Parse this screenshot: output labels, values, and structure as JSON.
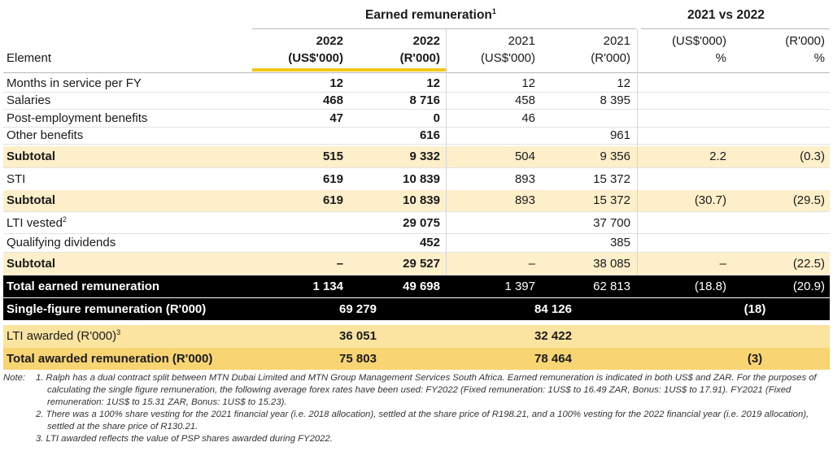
{
  "header": {
    "group_earned": {
      "text": "Earned remuneration",
      "sup": "1"
    },
    "group_compare": "2021 vs 2022",
    "columns": [
      [
        "Element"
      ],
      [
        "2022",
        "(US$'000)"
      ],
      [
        "2022",
        "(R'000)"
      ],
      [
        "2021",
        "(US$'000)"
      ],
      [
        "2021",
        "(R'000)"
      ],
      [
        "(US$'000)",
        "%"
      ],
      [
        "(R'000)",
        "%"
      ]
    ]
  },
  "table": {
    "rows": [
      {
        "style": "plain",
        "cells": [
          "Months in service per FY",
          "12",
          "12",
          "12",
          "12",
          null,
          null
        ]
      },
      {
        "style": "plain",
        "cells": [
          "Salaries",
          "468",
          "8 716",
          "458",
          "8 395",
          null,
          null
        ]
      },
      {
        "style": "plain",
        "cells": [
          "Post-employment benefits",
          "47",
          "0",
          "46",
          null,
          null,
          null
        ]
      },
      {
        "style": "plain",
        "cells": [
          "Other benefits",
          null,
          "616",
          null,
          "961",
          null,
          null
        ]
      },
      {
        "style": "subtotal",
        "cells": [
          "Subtotal",
          "515",
          "9 332",
          "504",
          "9 356",
          "2.2",
          "(0.3)"
        ]
      },
      {
        "style": "plain",
        "cells": [
          "STI",
          "619",
          "10 839",
          "893",
          "15 372",
          null,
          null
        ]
      },
      {
        "style": "subtotal",
        "cells": [
          "Subtotal",
          "619",
          "10 839",
          "893",
          "15 372",
          "(30.7)",
          "(29.5)"
        ]
      },
      {
        "style": "plain",
        "cells": [
          {
            "text": "LTI vested",
            "sup": "2"
          },
          null,
          "29 075",
          null,
          "37 700",
          null,
          null
        ]
      },
      {
        "style": "plain",
        "cells": [
          "Qualifying dividends",
          null,
          "452",
          null,
          "385",
          null,
          null
        ]
      },
      {
        "style": "subtotal",
        "cells": [
          "Subtotal",
          "–",
          "29 527",
          "–",
          "38 085",
          "–",
          "(22.5)"
        ]
      },
      {
        "style": "total",
        "cells": [
          "Total earned  remuneration",
          "1 134",
          "49 698",
          "1 397",
          "62 813",
          "(18.8)",
          "(20.9)"
        ]
      },
      {
        "style": "single",
        "merged": true,
        "cells": [
          "Single-figure remuneration (R'000)",
          "69 279",
          "84 126",
          "(18)"
        ]
      },
      {
        "style": "awarded",
        "merged": true,
        "cells": [
          {
            "text": "LTI awarded (R'000)",
            "sup": "3"
          },
          "36 051",
          "32 422",
          null
        ]
      },
      {
        "style": "awarded-total",
        "merged": true,
        "cells": [
          "Total awarded remuneration (R'000)",
          "75 803",
          "78 464",
          "(3)"
        ]
      }
    ]
  },
  "notes": {
    "lead": "Note:",
    "items": [
      "1. Ralph has a dual contract split between MTN Dubai Limited and MTN Group Management Services South Africa. Earned remuneration is indicated in both US$ and ZAR. For the purposes of calculating the single figure remuneration, the following average forex rates have been used: FY2022 (Fixed remuneration: 1US$ to 16.49 ZAR, Bonus: 1US$ to 17.91). FY2021 (Fixed remuneration: 1US$ to 15.31 ZAR, Bonus: 1US$ to 15.23).",
      "2. There was a 100% share vesting for the 2021 financial year (i.e. 2018 allocation), settled at the share price of R198.21, and a 100% vesting for the 2022 financial year (i.e. 2019  allocation), settled at the share price of R130.21.",
      "3. LTI awarded reflects the value of PSP shares awarded during FY2022."
    ]
  }
}
